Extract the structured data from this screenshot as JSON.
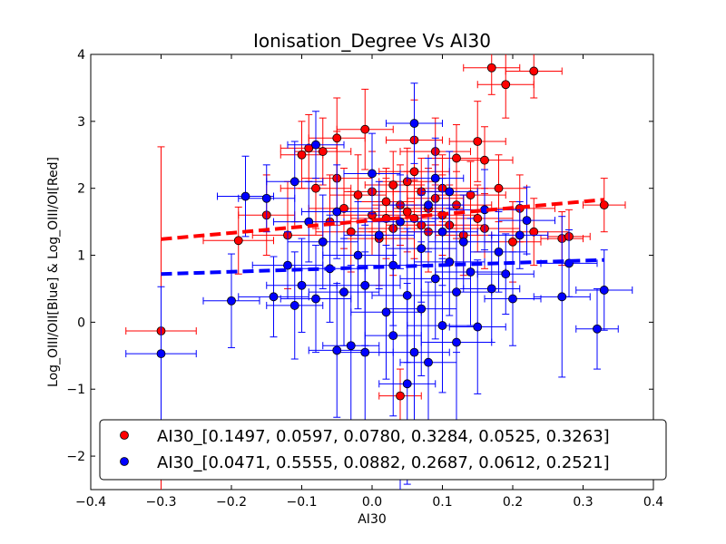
{
  "chart_data": {
    "type": "scatter",
    "title": "Ionisation_Degree Vs AI30",
    "xlabel": "AI30",
    "ylabel": "Log_OIII/OII[Blue] & Log_OIII/OI[Red]",
    "xlim": [
      -0.4,
      0.4
    ],
    "ylim": [
      -2.5,
      4
    ],
    "xticks": [
      "−0.4",
      "−0.3",
      "−0.2",
      "−0.1",
      "0.0",
      "0.1",
      "0.2",
      "0.3",
      "0.4"
    ],
    "yticks": [
      "−2",
      "−1",
      "0",
      "1",
      "2",
      "3",
      "4"
    ],
    "grid": false,
    "legend_position": "lower-right",
    "series": [
      {
        "name": "AI30_[0.1497, 0.0597, 0.0780, 0.3284, 0.0525, 0.3263]",
        "color": "#ff0000",
        "fit_line": {
          "x": [
            -0.3,
            0.33
          ],
          "y": [
            1.24,
            1.83
          ]
        },
        "points": [
          [
            -0.3,
            -0.13,
            0.05,
            2.75
          ],
          [
            -0.19,
            1.22,
            0.05,
            0.5
          ],
          [
            -0.15,
            1.6,
            0.04,
            0.6
          ],
          [
            -0.12,
            1.3,
            0.05,
            0.8
          ],
          [
            -0.1,
            2.5,
            0.03,
            0.5
          ],
          [
            -0.09,
            2.6,
            0.04,
            0.5
          ],
          [
            -0.08,
            2.0,
            0.05,
            0.6
          ],
          [
            -0.07,
            2.55,
            0.04,
            0.5
          ],
          [
            -0.06,
            1.5,
            0.05,
            0.7
          ],
          [
            -0.05,
            2.75,
            0.04,
            0.6
          ],
          [
            -0.05,
            2.15,
            0.05,
            0.7
          ],
          [
            -0.04,
            1.7,
            0.05,
            0.6
          ],
          [
            -0.03,
            1.35,
            0.05,
            0.6
          ],
          [
            -0.02,
            1.9,
            0.04,
            0.6
          ],
          [
            -0.01,
            2.88,
            0.04,
            0.6
          ],
          [
            0.0,
            1.6,
            0.05,
            0.6
          ],
          [
            0.0,
            1.95,
            0.04,
            0.6
          ],
          [
            0.01,
            1.25,
            0.05,
            0.7
          ],
          [
            0.02,
            1.8,
            0.04,
            0.5
          ],
          [
            0.02,
            1.55,
            0.05,
            0.6
          ],
          [
            0.03,
            2.05,
            0.04,
            0.5
          ],
          [
            0.03,
            1.4,
            0.05,
            0.7
          ],
          [
            0.04,
            -1.1,
            0.03,
            0.4
          ],
          [
            0.04,
            1.75,
            0.04,
            0.6
          ],
          [
            0.05,
            1.65,
            0.05,
            0.6
          ],
          [
            0.05,
            2.1,
            0.04,
            0.5
          ],
          [
            0.06,
            2.72,
            0.04,
            0.6
          ],
          [
            0.06,
            2.25,
            0.05,
            0.5
          ],
          [
            0.06,
            1.55,
            0.04,
            0.6
          ],
          [
            0.07,
            1.45,
            0.05,
            0.6
          ],
          [
            0.07,
            1.95,
            0.04,
            0.5
          ],
          [
            0.08,
            1.7,
            0.05,
            0.6
          ],
          [
            0.08,
            1.35,
            0.04,
            0.6
          ],
          [
            0.09,
            2.55,
            0.05,
            0.5
          ],
          [
            0.09,
            1.85,
            0.04,
            0.5
          ],
          [
            0.1,
            1.6,
            0.05,
            0.6
          ],
          [
            0.1,
            2.0,
            0.04,
            0.5
          ],
          [
            0.11,
            1.45,
            0.05,
            0.6
          ],
          [
            0.12,
            2.45,
            0.04,
            0.5
          ],
          [
            0.12,
            1.75,
            0.05,
            0.5
          ],
          [
            0.13,
            1.3,
            0.04,
            0.6
          ],
          [
            0.14,
            1.9,
            0.05,
            0.5
          ],
          [
            0.15,
            2.7,
            0.04,
            0.6
          ],
          [
            0.15,
            1.55,
            0.05,
            0.5
          ],
          [
            0.16,
            2.42,
            0.04,
            0.5
          ],
          [
            0.16,
            1.4,
            0.05,
            0.6
          ],
          [
            0.17,
            3.8,
            0.04,
            0.4
          ],
          [
            0.18,
            2.0,
            0.04,
            0.5
          ],
          [
            0.19,
            3.55,
            0.04,
            0.5
          ],
          [
            0.2,
            1.2,
            0.04,
            0.6
          ],
          [
            0.21,
            1.7,
            0.05,
            0.5
          ],
          [
            0.23,
            3.75,
            0.04,
            0.4
          ],
          [
            0.23,
            1.35,
            0.05,
            0.5
          ],
          [
            0.27,
            1.25,
            0.03,
            0.4
          ],
          [
            0.28,
            1.28,
            0.03,
            0.4
          ],
          [
            0.33,
            1.75,
            0.03,
            0.4
          ]
        ]
      },
      {
        "name": "AI30_[0.0471, 0.5555, 0.0882, 0.2687, 0.0612, 0.2521]",
        "color": "#0000ff",
        "fit_line": {
          "x": [
            -0.3,
            0.33
          ],
          "y": [
            0.72,
            0.93
          ]
        },
        "points": [
          [
            -0.3,
            -0.47,
            0.05,
            1.0
          ],
          [
            -0.2,
            0.32,
            0.04,
            0.7
          ],
          [
            -0.18,
            1.88,
            0.04,
            0.6
          ],
          [
            -0.15,
            1.85,
            0.04,
            0.5
          ],
          [
            -0.14,
            0.38,
            0.05,
            0.6
          ],
          [
            -0.12,
            0.85,
            0.05,
            0.5
          ],
          [
            -0.11,
            0.25,
            0.04,
            0.8
          ],
          [
            -0.11,
            2.1,
            0.04,
            0.6
          ],
          [
            -0.1,
            0.55,
            0.05,
            0.7
          ],
          [
            -0.09,
            1.5,
            0.05,
            0.6
          ],
          [
            -0.08,
            2.65,
            0.04,
            0.5
          ],
          [
            -0.08,
            0.35,
            0.05,
            0.8
          ],
          [
            -0.07,
            1.2,
            0.05,
            0.7
          ],
          [
            -0.06,
            0.8,
            0.05,
            0.8
          ],
          [
            -0.05,
            -0.42,
            0.04,
            1.0
          ],
          [
            -0.05,
            1.65,
            0.05,
            0.7
          ],
          [
            -0.04,
            0.45,
            0.05,
            0.8
          ],
          [
            -0.03,
            -0.35,
            0.04,
            1.2
          ],
          [
            -0.02,
            1.0,
            0.05,
            0.8
          ],
          [
            -0.01,
            -0.45,
            0.04,
            1.5
          ],
          [
            -0.01,
            0.55,
            0.05,
            0.9
          ],
          [
            0.0,
            2.22,
            0.04,
            0.6
          ],
          [
            0.01,
            1.3,
            0.05,
            0.8
          ],
          [
            0.02,
            0.15,
            0.05,
            1.0
          ],
          [
            0.03,
            -0.2,
            0.04,
            1.2
          ],
          [
            0.03,
            0.85,
            0.05,
            0.9
          ],
          [
            0.04,
            1.5,
            0.05,
            0.7
          ],
          [
            0.04,
            -2.28,
            0.04,
            0.3
          ],
          [
            0.05,
            -0.92,
            0.04,
            1.5
          ],
          [
            0.05,
            0.4,
            0.05,
            1.0
          ],
          [
            0.06,
            2.97,
            0.04,
            0.6
          ],
          [
            0.06,
            -0.45,
            0.05,
            1.3
          ],
          [
            0.07,
            1.1,
            0.05,
            0.8
          ],
          [
            0.07,
            0.2,
            0.05,
            1.0
          ],
          [
            0.08,
            1.75,
            0.05,
            0.7
          ],
          [
            0.08,
            -0.6,
            0.04,
            1.2
          ],
          [
            0.09,
            0.65,
            0.05,
            0.9
          ],
          [
            0.09,
            2.15,
            0.04,
            0.6
          ],
          [
            0.1,
            1.35,
            0.05,
            0.8
          ],
          [
            0.1,
            -0.05,
            0.05,
            1.0
          ],
          [
            0.11,
            0.9,
            0.05,
            0.8
          ],
          [
            0.11,
            1.95,
            0.04,
            0.6
          ],
          [
            0.12,
            -0.3,
            0.05,
            1.2
          ],
          [
            0.12,
            0.45,
            0.05,
            0.9
          ],
          [
            0.13,
            1.2,
            0.05,
            0.7
          ],
          [
            0.14,
            0.75,
            0.05,
            0.8
          ],
          [
            0.15,
            -0.07,
            0.04,
            1.0
          ],
          [
            0.16,
            1.68,
            0.05,
            0.6
          ],
          [
            0.17,
            0.5,
            0.04,
            0.8
          ],
          [
            0.18,
            1.05,
            0.04,
            0.6
          ],
          [
            0.19,
            0.72,
            0.04,
            0.6
          ],
          [
            0.2,
            0.35,
            0.04,
            0.7
          ],
          [
            0.21,
            1.3,
            0.04,
            0.5
          ],
          [
            0.22,
            1.52,
            0.04,
            0.5
          ],
          [
            0.27,
            0.38,
            0.04,
            1.2
          ],
          [
            0.28,
            0.88,
            0.04,
            0.5
          ],
          [
            0.32,
            -0.1,
            0.03,
            0.6
          ],
          [
            0.33,
            0.48,
            0.04,
            0.6
          ]
        ]
      }
    ]
  }
}
